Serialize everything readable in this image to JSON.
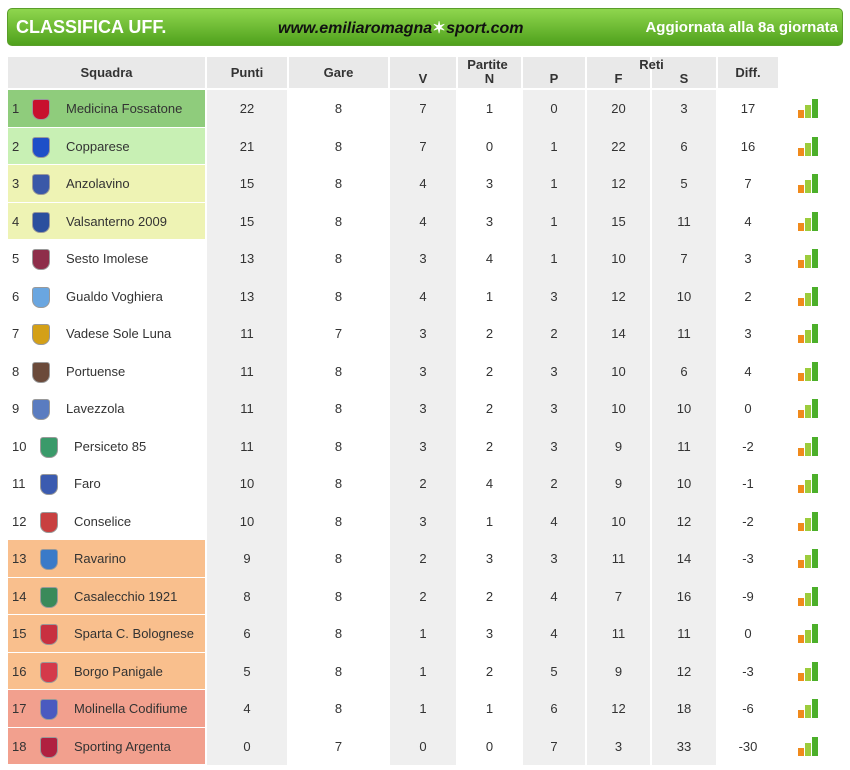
{
  "header": {
    "title": "CLASSIFICA UFF.",
    "site_left": "www.emiliaromagna",
    "site_right": "sport.com",
    "updated": "Aggiornata alla 8a giornata"
  },
  "table": {
    "columns": [
      "Squadra",
      "Punti",
      "Gare",
      "V",
      "N",
      "P",
      "F",
      "S",
      "Diff."
    ],
    "groups": [
      "Partite",
      "Reti"
    ],
    "rows": [
      [
        1,
        "Medicina Fossatone",
        22,
        8,
        7,
        1,
        0,
        20,
        3,
        17
      ],
      [
        2,
        "Copparese",
        21,
        8,
        7,
        0,
        1,
        22,
        6,
        16
      ],
      [
        3,
        "Anzolavino",
        15,
        8,
        4,
        3,
        1,
        12,
        5,
        7
      ],
      [
        4,
        "Valsanterno 2009",
        15,
        8,
        4,
        3,
        1,
        15,
        11,
        4
      ],
      [
        5,
        "Sesto Imolese",
        13,
        8,
        3,
        4,
        1,
        10,
        7,
        3
      ],
      [
        6,
        "Gualdo Voghiera",
        13,
        8,
        4,
        1,
        3,
        12,
        10,
        2
      ],
      [
        7,
        "Vadese Sole Luna",
        11,
        7,
        3,
        2,
        2,
        14,
        11,
        3
      ],
      [
        8,
        "Portuense",
        11,
        8,
        3,
        2,
        3,
        10,
        6,
        4
      ],
      [
        9,
        "Lavezzola",
        11,
        8,
        3,
        2,
        3,
        10,
        10,
        0
      ],
      [
        10,
        "Persiceto 85",
        11,
        8,
        3,
        2,
        3,
        9,
        11,
        -2
      ],
      [
        11,
        "Faro",
        10,
        8,
        2,
        4,
        2,
        9,
        10,
        -1
      ],
      [
        12,
        "Conselice",
        10,
        8,
        3,
        1,
        4,
        10,
        12,
        -2
      ],
      [
        13,
        "Ravarino",
        9,
        8,
        2,
        3,
        3,
        11,
        14,
        -3
      ],
      [
        14,
        "Casalecchio 1921",
        8,
        8,
        2,
        2,
        4,
        7,
        16,
        -9
      ],
      [
        15,
        "Sparta C. Bolognese",
        6,
        8,
        1,
        3,
        4,
        11,
        11,
        0
      ],
      [
        16,
        "Borgo Panigale",
        5,
        8,
        1,
        2,
        5,
        9,
        12,
        -3
      ],
      [
        17,
        "Molinella Codifiume",
        4,
        8,
        1,
        1,
        6,
        12,
        18,
        -6
      ],
      [
        18,
        "Sporting Argenta",
        0,
        7,
        0,
        0,
        7,
        3,
        33,
        -30
      ]
    ]
  }
}
